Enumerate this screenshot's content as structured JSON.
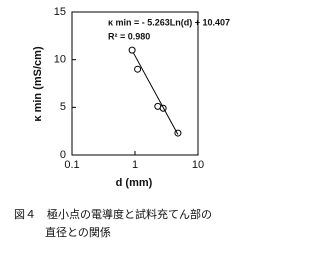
{
  "chart_data": {
    "type": "scatter",
    "annotations": [
      "κ min = - 5.263Ln(d) + 10.407",
      "R² = 0.980"
    ],
    "xlabel": "d (mm)",
    "ylabel": "κ min (mS/cm)",
    "log_x": true,
    "xlim": [
      0.1,
      10
    ],
    "xticks": [
      0.1,
      1,
      10
    ],
    "ylim": [
      0,
      15
    ],
    "yticks": [
      0,
      5,
      10,
      15
    ],
    "series": [
      {
        "type": "scatter",
        "x": [
          0.9,
          1.1,
          2.3,
          2.8,
          4.8
        ],
        "values": [
          11.0,
          9.0,
          5.1,
          4.9,
          2.3
        ],
        "color": "#000000"
      },
      {
        "type": "line",
        "x": [
          0.95,
          4.8
        ],
        "values": [
          10.68,
          2.15
        ],
        "color": "#000000"
      }
    ]
  },
  "caption": [
    "図４　極小点の電導度と試料充てん部の",
    "直径との関係"
  ]
}
